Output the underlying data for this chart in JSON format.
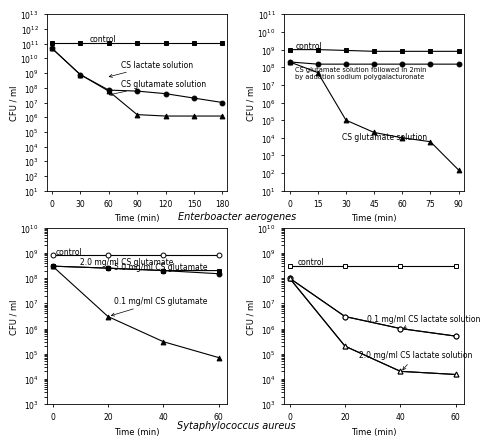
{
  "top_left": {
    "xlabel": "Time (min)",
    "ylabel": "CFU / ml",
    "xlim": [
      -5,
      185
    ],
    "ylim": [
      10.0,
      10000000000000.0
    ],
    "xticks": [
      0,
      30,
      60,
      90,
      120,
      150,
      180
    ],
    "series": [
      {
        "label": "control",
        "x": [
          0,
          30,
          60,
          90,
          120,
          150,
          180
        ],
        "y": [
          120000000000.0,
          120000000000.0,
          120000000000.0,
          120000000000.0,
          120000000000.0,
          120000000000.0,
          120000000000.0
        ],
        "marker": "s",
        "fillstyle": "full",
        "color": "black"
      },
      {
        "label": "CS lactate solution",
        "x": [
          0,
          30,
          60,
          90,
          120,
          150,
          180
        ],
        "y": [
          50000000000.0,
          800000000.0,
          70000000.0,
          60000000.0,
          40000000.0,
          20000000.0,
          10000000.0
        ],
        "marker": "o",
        "fillstyle": "full",
        "color": "black"
      },
      {
        "label": "CS glutamate solution",
        "x": [
          0,
          30,
          60,
          90,
          120,
          150,
          180
        ],
        "y": [
          50000000000.0,
          800000000.0,
          60000000.0,
          1500000.0,
          1200000.0,
          1200000.0,
          1200000.0
        ],
        "marker": "^",
        "fillstyle": "full",
        "color": "black"
      }
    ]
  },
  "top_right": {
    "xlabel": "Time (min)",
    "ylabel": "CFU / ml",
    "xlim": [
      -3,
      93
    ],
    "ylim": [
      10.0,
      100000000000.0
    ],
    "xticks": [
      0,
      15,
      30,
      45,
      60,
      75,
      90
    ],
    "series": [
      {
        "label": "control",
        "x": [
          0,
          15,
          30,
          45,
          60,
          75,
          90
        ],
        "y": [
          1000000000.0,
          1000000000.0,
          900000000.0,
          800000000.0,
          800000000.0,
          800000000.0,
          800000000.0
        ],
        "marker": "s",
        "fillstyle": "full",
        "color": "black"
      },
      {
        "label": "CS glutamate solution followed in 2min\nby addation sodium polygalacturonate",
        "x": [
          0,
          15,
          30,
          45,
          60,
          75,
          90
        ],
        "y": [
          200000000.0,
          150000000.0,
          150000000.0,
          150000000.0,
          150000000.0,
          150000000.0,
          150000000.0
        ],
        "marker": "o",
        "fillstyle": "full",
        "color": "black"
      },
      {
        "label": "CS glutamate solution",
        "x": [
          0,
          15,
          30,
          45,
          60,
          75,
          90
        ],
        "y": [
          200000000.0,
          50000000.0,
          100000.0,
          20000.0,
          10000.0,
          6000.0,
          150.0
        ],
        "marker": "^",
        "fillstyle": "full",
        "color": "black"
      }
    ]
  },
  "bottom_left": {
    "xlabel": "Time (min)",
    "ylabel": "CFU / ml",
    "xlim": [
      -2,
      63
    ],
    "ylim": [
      1000.0,
      10000000000.0
    ],
    "xticks": [
      0,
      20,
      40,
      60
    ],
    "series": [
      {
        "label": "control",
        "x": [
          0,
          20,
          40,
          60
        ],
        "y": [
          800000000.0,
          800000000.0,
          800000000.0,
          800000000.0
        ],
        "marker": "o",
        "fillstyle": "none",
        "color": "black"
      },
      {
        "label": "2.0 mg/ml CS glutamate",
        "x": [
          0,
          20,
          40,
          60
        ],
        "y": [
          300000000.0,
          250000000.0,
          200000000.0,
          200000000.0
        ],
        "marker": "s",
        "fillstyle": "full",
        "color": "black"
      },
      {
        "label": "5.0 mg/ml CS glutamate",
        "x": [
          0,
          20,
          40,
          60
        ],
        "y": [
          300000000.0,
          250000000.0,
          200000000.0,
          150000000.0
        ],
        "marker": "o",
        "fillstyle": "full",
        "color": "black"
      },
      {
        "label": "0.1 mg/ml CS glutamate",
        "x": [
          0,
          20,
          40,
          60
        ],
        "y": [
          300000000.0,
          3000000.0,
          300000.0,
          70000.0
        ],
        "marker": "^",
        "fillstyle": "full",
        "color": "black"
      }
    ]
  },
  "bottom_right": {
    "xlabel": "Time (min)",
    "ylabel": "CFU / ml",
    "xlim": [
      -2,
      63
    ],
    "ylim": [
      1000.0,
      10000000000.0
    ],
    "xticks": [
      0,
      20,
      40,
      60
    ],
    "series": [
      {
        "label": "control",
        "x": [
          0,
          20,
          40,
          60
        ],
        "y": [
          300000000.0,
          300000000.0,
          300000000.0,
          300000000.0
        ],
        "marker": "s",
        "fillstyle": "none",
        "color": "black"
      },
      {
        "label": "0.1 mg/ml CS lactate solution A",
        "x": [
          0,
          20,
          40,
          60
        ],
        "y": [
          100000000.0,
          3000000.0,
          1000000.0,
          500000.0
        ],
        "marker": "o",
        "fillstyle": "full",
        "color": "black"
      },
      {
        "label": "0.1 mg/ml CS lactate solution B",
        "x": [
          0,
          20,
          40,
          60
        ],
        "y": [
          100000000.0,
          3000000.0,
          1000000.0,
          500000.0
        ],
        "marker": "o",
        "fillstyle": "none",
        "color": "black"
      },
      {
        "label": "2.0 mg/ml CS lactate solution A",
        "x": [
          0,
          20,
          40,
          60
        ],
        "y": [
          100000000.0,
          200000.0,
          20000.0,
          15000.0
        ],
        "marker": "^",
        "fillstyle": "full",
        "color": "black"
      },
      {
        "label": "2.0 mg/ml CS lactate solution B",
        "x": [
          0,
          20,
          40,
          60
        ],
        "y": [
          100000000.0,
          200000.0,
          20000.0,
          15000.0
        ],
        "marker": "^",
        "fillstyle": "none",
        "color": "black"
      }
    ]
  },
  "label_enterobacter": "Enterboacter aerogenes",
  "label_staphylococcus": "Sytaphylococcus aureus",
  "bg_color": "#ffffff"
}
